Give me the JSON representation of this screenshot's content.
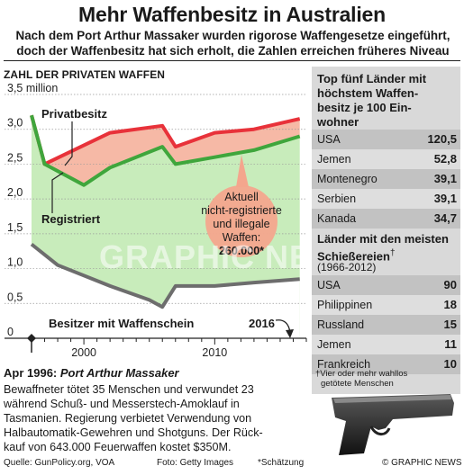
{
  "header": {
    "title": "Mehr Waffenbesitz in Australien",
    "subtitle_line1": "Nach dem Port Arthur Massaker wurden rigorose Waffengesetze eingeführt,",
    "subtitle_line2": "doch der Waffenbesitz hat sich erholt, die Zahlen erreichen früheres Niveau"
  },
  "chart_data": {
    "type": "area",
    "title": "Zahl der privaten Waffen",
    "y_unit": "million",
    "ylim": [
      0,
      3.5
    ],
    "yticks": [
      "0",
      "0,5",
      "1,0",
      "1,5",
      "2,0",
      "2,5",
      "3,0",
      "3,5 million"
    ],
    "xlim": [
      1996,
      2017
    ],
    "xticks": [
      "2000",
      "2010"
    ],
    "series": [
      {
        "name": "Privatbesitz",
        "color": "#e8323a",
        "x": [
          1996,
          1997,
          2002,
          2006,
          2007,
          2010,
          2013,
          2016.5
        ],
        "y": [
          3.2,
          2.5,
          2.95,
          3.05,
          2.75,
          2.95,
          3.0,
          3.15
        ]
      },
      {
        "name": "Registriert",
        "color": "#3fa63c",
        "x": [
          1996,
          1997,
          2000,
          2002,
          2006,
          2007,
          2010,
          2013,
          2016.5
        ],
        "y": [
          3.2,
          2.5,
          2.2,
          2.45,
          2.75,
          2.5,
          2.6,
          2.7,
          2.9
        ]
      },
      {
        "name": "Besitzer mit Waffenschein",
        "color": "#6d6d6d",
        "x": [
          1996,
          1998,
          2002,
          2005,
          2006,
          2007,
          2010,
          2013,
          2016.5
        ],
        "y": [
          1.35,
          1.05,
          0.75,
          0.55,
          0.45,
          0.75,
          0.75,
          0.8,
          0.85
        ]
      }
    ],
    "annotations": {
      "callout_line1": "Aktuell",
      "callout_line2": "nicht-registrierte",
      "callout_line3": "und illegale",
      "callout_line4": "Waffen:",
      "callout_value": "260.000*",
      "year_marker": "2016"
    }
  },
  "right_panel": {
    "top_heading_1": "Top fünf Länder mit",
    "top_heading_2": "höchstem Waffen-",
    "top_heading_3": "besitz je 100 Ein-",
    "top_heading_4": "wohner",
    "top_countries": [
      {
        "name": "USA",
        "value": "120,5"
      },
      {
        "name": "Jemen",
        "value": "52,8"
      },
      {
        "name": "Montenegro",
        "value": "39,1"
      },
      {
        "name": "Serbien",
        "value": "39,1"
      },
      {
        "name": "Kanada",
        "value": "34,7"
      }
    ],
    "shootings_heading_1": "Länder mit den meisten",
    "shootings_heading_2": "Schießereien",
    "shootings_dagger": "†",
    "shootings_period": "(1966-2012)",
    "shootings": [
      {
        "name": "USA",
        "value": "90"
      },
      {
        "name": "Philippinen",
        "value": "18"
      },
      {
        "name": "Russland",
        "value": "15"
      },
      {
        "name": "Jemen",
        "value": "11"
      },
      {
        "name": "Frankreich",
        "value": "10"
      }
    ],
    "footnote_1": "†Vier oder mehr wahllos",
    "footnote_2": "getötete Menschen"
  },
  "event": {
    "date": "Apr 1996:",
    "name": "Port Arthur Massaker",
    "line1": "Bewaffneter tötet 35 Menschen und verwundet 23",
    "line2": "während Schuß- und Messerstech-Amoklauf in",
    "line3": "Tasmanien. Regierung verbietet Verwendung von",
    "line4": "Halbautomatik-Gewehren und Shotguns. Der Rück-",
    "line5": "kauf von 643.000 Feuerwaffen kostet $350M."
  },
  "footer": {
    "source": "Quelle: GunPolicy.org, VOA",
    "photo": "Foto: Getty Images",
    "estimate": "*Schätzung",
    "credit": "© GRAPHIC NEWS"
  },
  "watermark": "GRAPHIC NEWS",
  "colors": {
    "red": "#e8323a",
    "red_fill": "#f6b9a6",
    "green": "#3fa63c",
    "green_fill": "#c8ecbb",
    "panel_bg": "#d9d9d9"
  }
}
